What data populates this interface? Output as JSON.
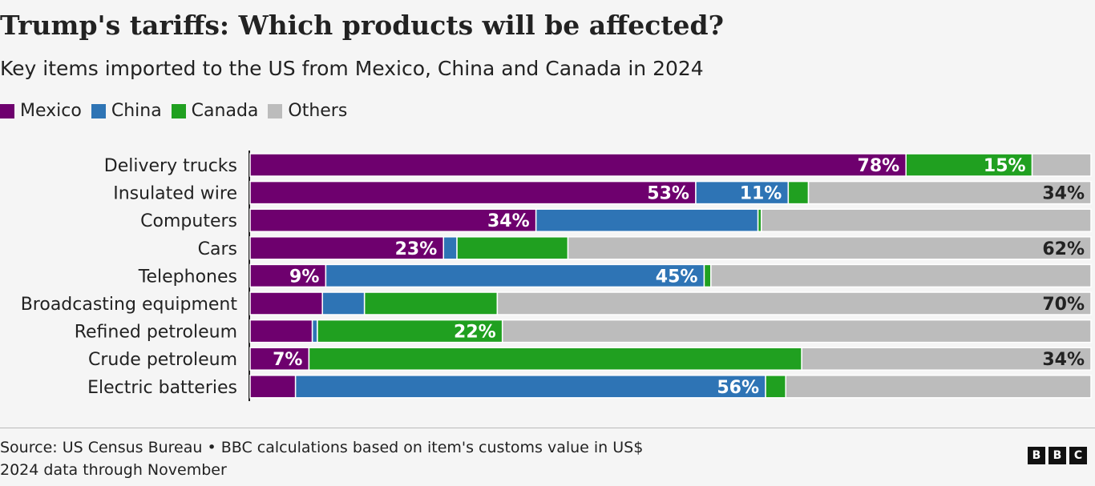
{
  "title": "Trump's tariffs: Which products will be affected?",
  "subtitle": "Key items imported to the US from Mexico, China and Canada in 2024",
  "legend": [
    {
      "label": "Mexico",
      "color": "#6e006e"
    },
    {
      "label": "China",
      "color": "#2e74b5"
    },
    {
      "label": "Canada",
      "color": "#20a020"
    },
    {
      "label": "Others",
      "color": "#bcbcbc"
    }
  ],
  "chart_data": {
    "type": "bar",
    "orientation": "horizontal",
    "stacked": true,
    "title": "Trump's tariffs: Which products will be affected?",
    "xlabel": "",
    "ylabel": "",
    "xlim": [
      0,
      100
    ],
    "unit": "%",
    "categories": [
      "Delivery trucks",
      "Insulated wire",
      "Computers",
      "Cars",
      "Telephones",
      "Broadcasting equipment",
      "Refined petroleum",
      "Crude petroleum",
      "Electric batteries"
    ],
    "series": [
      {
        "name": "Mexico",
        "color": "#6e006e",
        "values": [
          78,
          53,
          34,
          23,
          9,
          8.6,
          7.4,
          7,
          5.4
        ]
      },
      {
        "name": "China",
        "color": "#2e74b5",
        "values": [
          0,
          11,
          26.4,
          1.6,
          45,
          5,
          0.6,
          0,
          55.9
        ]
      },
      {
        "name": "Canada",
        "color": "#20a020",
        "values": [
          15,
          2.4,
          0.4,
          13.2,
          0.8,
          15.8,
          22,
          58.6,
          2.4
        ]
      },
      {
        "name": "Others",
        "color": "#bcbcbc",
        "values": [
          7,
          34,
          39.2,
          62,
          45.2,
          70,
          70,
          34,
          36.3
        ]
      }
    ],
    "labels": [
      [
        "78%",
        "",
        "15%",
        ""
      ],
      [
        "53%",
        "11%",
        "",
        "34%"
      ],
      [
        "34%",
        "",
        "",
        ""
      ],
      [
        "23%",
        "",
        "",
        "62%"
      ],
      [
        "9%",
        "45%",
        "",
        ""
      ],
      [
        "",
        "",
        "",
        "70%"
      ],
      [
        "",
        "",
        "22%",
        ""
      ],
      [
        "7%",
        "",
        "",
        "34%"
      ],
      [
        "",
        "56%",
        "",
        ""
      ]
    ]
  },
  "source_line1": "Source: US Census Bureau • BBC calculations based on item's customs value in US$",
  "source_line2": "2024 data through November",
  "logo": [
    "B",
    "B",
    "C"
  ]
}
